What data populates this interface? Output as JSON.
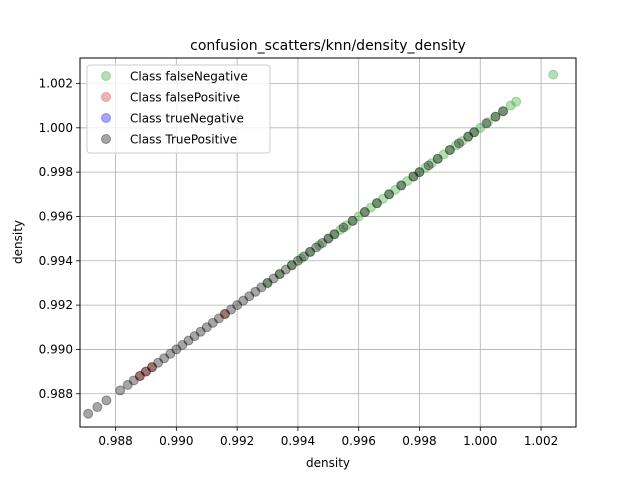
{
  "chart_data": {
    "type": "scatter",
    "title": "confusion_scatters/knn/density_density",
    "xlabel": "density",
    "ylabel": "density",
    "xlim": [
      0.98683,
      1.00315
    ],
    "ylim": [
      0.9865,
      1.00315
    ],
    "xticks": [
      "0.988",
      "0.990",
      "0.992",
      "0.994",
      "0.996",
      "0.998",
      "1.000",
      "1.002"
    ],
    "yticks": [
      "0.988",
      "0.990",
      "0.992",
      "0.994",
      "0.996",
      "0.998",
      "1.000",
      "1.002"
    ],
    "grid": true,
    "legend_position": "top-left",
    "series": [
      {
        "name": "Class falseNegative",
        "color": "#2ca02c",
        "opacity": 0.35,
        "x": [
          1.0024,
          1.00118,
          1.001,
          1.00075,
          1.0005,
          1.00025,
          1.0,
          0.9998,
          0.9996,
          0.9994,
          0.9992,
          0.999,
          0.9988,
          0.9986,
          0.9984,
          0.9982,
          0.998,
          0.9978,
          0.9976,
          0.9974,
          0.9972,
          0.997,
          0.9968,
          0.9966,
          0.9964,
          0.9962,
          0.996,
          0.9958,
          0.9956,
          0.9954,
          0.9952,
          0.995,
          0.9947,
          0.9944,
          0.9941,
          0.9938,
          0.9934,
          0.993
        ],
        "y": [
          1.0024,
          1.00118,
          1.001,
          1.00075,
          1.0005,
          1.00025,
          1.0,
          0.9998,
          0.9996,
          0.9994,
          0.9992,
          0.999,
          0.9988,
          0.9986,
          0.9984,
          0.9982,
          0.998,
          0.9978,
          0.9976,
          0.9974,
          0.9972,
          0.997,
          0.9968,
          0.9966,
          0.9964,
          0.9962,
          0.996,
          0.9958,
          0.9956,
          0.9954,
          0.9952,
          0.995,
          0.9947,
          0.9944,
          0.9941,
          0.9938,
          0.9934,
          0.993
        ]
      },
      {
        "name": "Class falsePositive",
        "color": "#d62728",
        "opacity": 0.35,
        "x": [
          0.9888,
          0.989,
          0.9892,
          0.9916
        ],
        "y": [
          0.9888,
          0.989,
          0.9892,
          0.9916
        ]
      },
      {
        "name": "Class trueNegative",
        "color": "#0000ff",
        "opacity": 0.35,
        "x": [],
        "y": []
      },
      {
        "name": "Class TruePositive",
        "color": "#000000",
        "opacity": 0.35,
        "x": [
          0.9871,
          0.9874,
          0.9877,
          0.98815,
          0.9884,
          0.9886,
          0.9888,
          0.989,
          0.9892,
          0.9894,
          0.9896,
          0.9898,
          0.99,
          0.9902,
          0.9904,
          0.9906,
          0.9908,
          0.991,
          0.9912,
          0.9914,
          0.9916,
          0.9918,
          0.992,
          0.9922,
          0.9924,
          0.9926,
          0.9928,
          0.993,
          0.9932,
          0.9934,
          0.9936,
          0.9938,
          0.994,
          0.9942,
          0.9944,
          0.9946,
          0.9948,
          0.995,
          0.9952,
          0.9955,
          0.9958,
          0.9962,
          0.9966,
          0.997,
          0.9974,
          0.9978,
          0.998,
          0.9983,
          0.9986,
          0.999,
          0.9993,
          0.9996,
          0.9998,
          1.0002,
          1.0005,
          1.00075
        ],
        "y": [
          0.9871,
          0.9874,
          0.9877,
          0.98815,
          0.9884,
          0.9886,
          0.9888,
          0.989,
          0.9892,
          0.9894,
          0.9896,
          0.9898,
          0.99,
          0.9902,
          0.9904,
          0.9906,
          0.9908,
          0.991,
          0.9912,
          0.9914,
          0.9916,
          0.9918,
          0.992,
          0.9922,
          0.9924,
          0.9926,
          0.9928,
          0.993,
          0.9932,
          0.9934,
          0.9936,
          0.9938,
          0.994,
          0.9942,
          0.9944,
          0.9946,
          0.9948,
          0.995,
          0.9952,
          0.9955,
          0.9958,
          0.9962,
          0.9966,
          0.997,
          0.9974,
          0.9978,
          0.998,
          0.9983,
          0.9986,
          0.999,
          0.9993,
          0.9996,
          0.9998,
          1.0002,
          1.0005,
          1.00075
        ]
      }
    ]
  }
}
